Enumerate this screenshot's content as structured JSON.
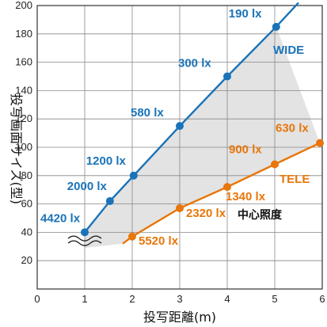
{
  "chart_data": {
    "type": "line",
    "xlabel": "投写距離(m)",
    "ylabel": "投写画面サイズ(型)",
    "xlim": [
      0,
      6
    ],
    "ylim": [
      0,
      200
    ],
    "x_ticks": [
      "0",
      "1",
      "2",
      "3",
      "4",
      "5",
      "6"
    ],
    "y_ticks": [
      "20",
      "40",
      "60",
      "80",
      "100",
      "120",
      "140",
      "160",
      "180",
      "200"
    ],
    "grid": true,
    "series": [
      {
        "name": "WIDE",
        "color": "#1a73b8",
        "x": [
          1.0,
          1.53,
          2.03,
          3.0,
          4.0,
          5.03,
          5.5
        ],
        "y": [
          40,
          62,
          80,
          115,
          150,
          185,
          202
        ],
        "labels": [
          "4420 lx",
          "2000 lx",
          "1200 lx",
          "580 lx",
          "300 lx",
          "190 lx",
          ""
        ]
      },
      {
        "name": "TELE",
        "color": "#e8760a",
        "x": [
          1.8,
          2.0,
          3.0,
          4.0,
          5.0,
          5.95
        ],
        "y": [
          32,
          37,
          57,
          72,
          88,
          103
        ],
        "labels": [
          "",
          "5520 lx",
          "2320 lx",
          "1340 lx",
          "900 lx",
          "630 lx"
        ]
      }
    ],
    "annotations": {
      "center_illuminance": "中心照度",
      "wide_label": "WIDE",
      "tele_label": "TELE"
    }
  }
}
